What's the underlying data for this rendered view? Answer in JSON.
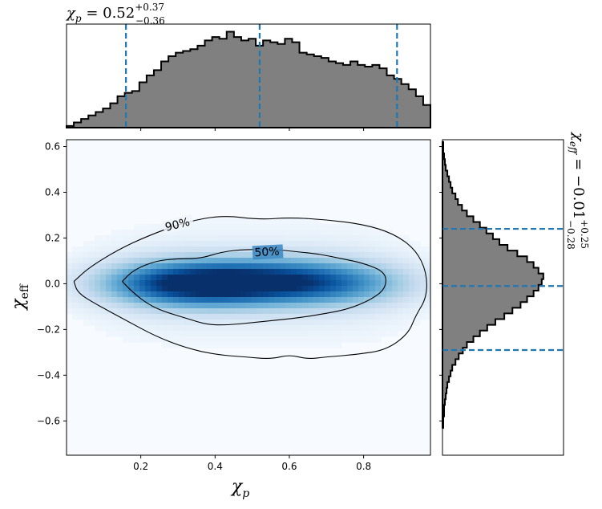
{
  "chart_data": [
    {
      "type": "heatmap",
      "panel": "joint-density",
      "xlabel": "χp",
      "ylabel": "χeff",
      "xlim": [
        0.0,
        0.98
      ],
      "ylim": [
        -0.75,
        0.63
      ],
      "xticks": [
        0.2,
        0.4,
        0.6,
        0.8
      ],
      "xtick_labels": [
        "0.2",
        "0.4",
        "0.6",
        "0.8"
      ],
      "yticks": [
        -0.6,
        -0.4,
        -0.2,
        0.0,
        0.2,
        0.4,
        0.6
      ],
      "ytick_labels": [
        "−0.6",
        "−0.4",
        "−0.2",
        "0.0",
        "0.2",
        "0.4",
        "0.6"
      ],
      "colormap": "Blues",
      "density_peaks": [
        {
          "x": 0.38,
          "y": 0.0,
          "w": 1.0
        },
        {
          "x": 0.58,
          "y": 0.01,
          "w": 0.75
        },
        {
          "x": 0.25,
          "y": 0.0,
          "w": 0.45
        },
        {
          "x": 0.75,
          "y": 0.0,
          "w": 0.45
        }
      ],
      "contours": [
        {
          "label": "90%",
          "label_at": [
            0.3,
            0.25
          ],
          "points": [
            [
              0.02,
              0.01
            ],
            [
              0.06,
              0.07
            ],
            [
              0.14,
              0.15
            ],
            [
              0.22,
              0.21
            ],
            [
              0.32,
              0.27
            ],
            [
              0.42,
              0.3
            ],
            [
              0.52,
              0.28
            ],
            [
              0.6,
              0.29
            ],
            [
              0.7,
              0.28
            ],
            [
              0.8,
              0.26
            ],
            [
              0.88,
              0.22
            ],
            [
              0.94,
              0.15
            ],
            [
              0.97,
              0.05
            ],
            [
              0.97,
              -0.06
            ],
            [
              0.94,
              -0.14
            ],
            [
              0.92,
              -0.22
            ],
            [
              0.86,
              -0.29
            ],
            [
              0.78,
              -0.31
            ],
            [
              0.7,
              -0.32
            ],
            [
              0.65,
              -0.33
            ],
            [
              0.6,
              -0.31
            ],
            [
              0.55,
              -0.33
            ],
            [
              0.48,
              -0.32
            ],
            [
              0.4,
              -0.31
            ],
            [
              0.32,
              -0.28
            ],
            [
              0.24,
              -0.23
            ],
            [
              0.16,
              -0.16
            ],
            [
              0.08,
              -0.09
            ],
            [
              0.03,
              -0.04
            ],
            [
              0.02,
              0.01
            ]
          ]
        },
        {
          "label": "50%",
          "label_at": [
            0.54,
            0.13
          ],
          "points": [
            [
              0.15,
              0.01
            ],
            [
              0.18,
              0.06
            ],
            [
              0.24,
              0.1
            ],
            [
              0.3,
              0.11
            ],
            [
              0.36,
              0.11
            ],
            [
              0.42,
              0.14
            ],
            [
              0.48,
              0.15
            ],
            [
              0.56,
              0.15
            ],
            [
              0.62,
              0.14
            ],
            [
              0.68,
              0.13
            ],
            [
              0.74,
              0.11
            ],
            [
              0.8,
              0.09
            ],
            [
              0.86,
              0.05
            ],
            [
              0.86,
              -0.02
            ],
            [
              0.82,
              -0.07
            ],
            [
              0.76,
              -0.11
            ],
            [
              0.7,
              -0.13
            ],
            [
              0.62,
              -0.15
            ],
            [
              0.56,
              -0.16
            ],
            [
              0.5,
              -0.17
            ],
            [
              0.44,
              -0.18
            ],
            [
              0.38,
              -0.18
            ],
            [
              0.32,
              -0.15
            ],
            [
              0.26,
              -0.12
            ],
            [
              0.22,
              -0.09
            ],
            [
              0.18,
              -0.04
            ],
            [
              0.15,
              0.01
            ]
          ]
        }
      ]
    },
    {
      "type": "bar",
      "panel": "top-marginal-histogram",
      "variable": "χp",
      "title": {
        "prefix": "χ",
        "sub": "p",
        "eq": " = 0.52",
        "sup_plus": "+0.37",
        "sub_minus": "−0.36"
      },
      "xlim": [
        0.0,
        0.98
      ],
      "bin_width": 0.0196,
      "values": [
        2,
        6,
        10,
        14,
        18,
        22,
        28,
        36,
        40,
        42,
        52,
        60,
        66,
        76,
        82,
        86,
        88,
        90,
        94,
        100,
        104,
        102,
        110,
        104,
        100,
        102,
        94,
        100,
        98,
        96,
        102,
        98,
        86,
        84,
        82,
        80,
        76,
        74,
        72,
        76,
        72,
        70,
        72,
        68,
        60,
        56,
        50,
        44,
        36,
        26
      ],
      "vlines": [
        0.16,
        0.52,
        0.89
      ],
      "fill": "#808080",
      "line_color": "#1f77b4"
    },
    {
      "type": "bar",
      "panel": "right-marginal-histogram",
      "orientation": "horizontal",
      "variable": "χeff",
      "title": {
        "prefix": "χ",
        "sub": "eff",
        "eq": " = −0.01",
        "sup_plus": "+0.25",
        "sub_minus": "−0.28"
      },
      "ylim": [
        -0.75,
        0.63
      ],
      "bin_edges_start": -0.63,
      "bin_width": 0.025,
      "values": [
        1,
        1,
        2,
        2,
        3,
        4,
        5,
        6,
        8,
        10,
        12,
        16,
        20,
        25,
        30,
        38,
        46,
        55,
        65,
        76,
        86,
        96,
        104,
        112,
        118,
        122,
        124,
        118,
        112,
        104,
        92,
        80,
        70,
        62,
        54,
        46,
        38,
        30,
        24,
        19,
        16,
        12,
        10,
        8,
        6,
        4,
        3,
        2,
        1,
        1
      ],
      "hlines": [
        -0.29,
        -0.01,
        0.24
      ],
      "fill": "#808080",
      "line_color": "#1f77b4"
    }
  ]
}
